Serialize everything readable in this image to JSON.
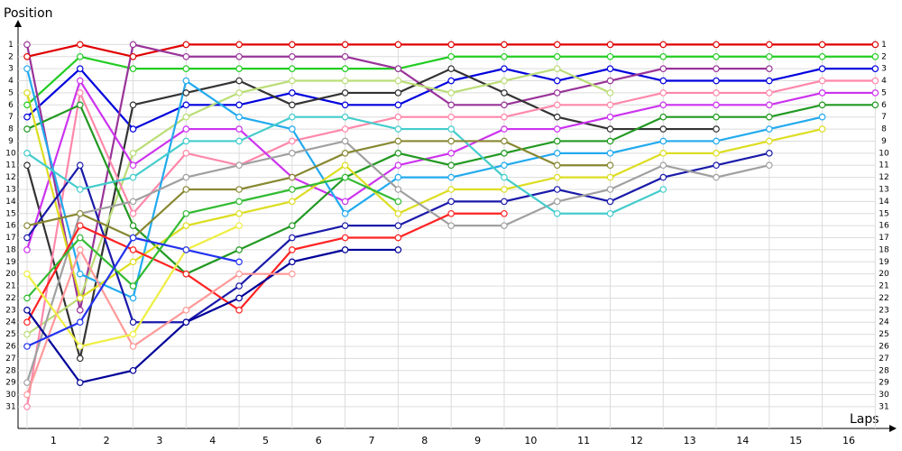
{
  "chart_data": {
    "type": "line",
    "y_label": "Position",
    "x_label": "Laps",
    "x": [
      0,
      1,
      2,
      3,
      4,
      5,
      6,
      7,
      8,
      9,
      10,
      11,
      12,
      13,
      14,
      15,
      16
    ],
    "xlim": [
      0,
      16.3
    ],
    "xticks": [
      {
        "value": 0.5,
        "label": "1"
      },
      {
        "value": 1.5,
        "label": "2"
      },
      {
        "value": 2.5,
        "label": "3"
      },
      {
        "value": 3.5,
        "label": "4"
      },
      {
        "value": 4.5,
        "label": "5"
      },
      {
        "value": 5.5,
        "label": "6"
      },
      {
        "value": 6.5,
        "label": "7"
      },
      {
        "value": 7.5,
        "label": "8"
      },
      {
        "value": 8.5,
        "label": "9"
      },
      {
        "value": 9.5,
        "label": "10"
      },
      {
        "value": 10.5,
        "label": "11"
      },
      {
        "value": 11.5,
        "label": "12"
      },
      {
        "value": 12.5,
        "label": "13"
      },
      {
        "value": 13.5,
        "label": "14"
      },
      {
        "value": 14.5,
        "label": "15"
      },
      {
        "value": 15.5,
        "label": "16"
      }
    ],
    "ylim": [
      0,
      32.8
    ],
    "yticks": [
      1,
      2,
      3,
      4,
      5,
      6,
      7,
      8,
      9,
      10,
      11,
      12,
      13,
      14,
      15,
      16,
      17,
      18,
      19,
      20,
      21,
      22,
      23,
      24,
      25,
      26,
      27,
      28,
      29,
      30,
      31
    ],
    "inverted_y": true,
    "grid": true,
    "series": [
      {
        "color": "#e00000",
        "values": [
          2,
          1,
          2,
          1,
          1,
          1,
          1,
          1,
          1,
          1,
          1,
          1,
          1,
          1,
          1,
          1,
          1
        ]
      },
      {
        "color": "#22cc22",
        "values": [
          6,
          2,
          3,
          3,
          3,
          3,
          3,
          3,
          2,
          2,
          2,
          2,
          2,
          2,
          2,
          2,
          2
        ]
      },
      {
        "color": "#0000dd",
        "values": [
          7,
          3,
          8,
          6,
          6,
          5,
          6,
          6,
          4,
          3,
          4,
          3,
          4,
          4,
          4,
          3,
          3
        ]
      },
      {
        "color": "#993399",
        "values": [
          1,
          23,
          1,
          2,
          2,
          2,
          2,
          3,
          6,
          6,
          5,
          4,
          3,
          3,
          3,
          null,
          null
        ]
      },
      {
        "color": "#333333",
        "values": [
          11,
          27,
          6,
          5,
          4,
          6,
          5,
          5,
          3,
          5,
          7,
          8,
          8,
          8,
          null,
          null,
          null
        ]
      },
      {
        "color": "#bbdd77",
        "values": [
          25,
          22,
          10,
          7,
          5,
          4,
          4,
          4,
          5,
          4,
          3,
          5,
          null,
          null,
          null,
          null,
          null
        ]
      },
      {
        "color": "#ff88aa",
        "values": [
          31,
          5,
          15,
          10,
          11,
          9,
          8,
          7,
          7,
          7,
          6,
          6,
          5,
          5,
          5,
          4,
          4
        ]
      },
      {
        "color": "#cc33ee",
        "values": [
          18,
          4,
          11,
          8,
          8,
          12,
          14,
          11,
          10,
          8,
          8,
          7,
          6,
          6,
          6,
          5,
          5
        ]
      },
      {
        "color": "#229922",
        "values": [
          8,
          6,
          16,
          20,
          18,
          16,
          12,
          10,
          11,
          10,
          9,
          9,
          7,
          7,
          7,
          6,
          6
        ]
      },
      {
        "color": "#22aaee",
        "values": [
          3,
          20,
          22,
          4,
          7,
          8,
          15,
          12,
          12,
          11,
          10,
          10,
          9,
          9,
          8,
          7,
          null
        ]
      },
      {
        "color": "#dddd22",
        "values": [
          5,
          22,
          19,
          16,
          15,
          14,
          11,
          15,
          13,
          13,
          12,
          12,
          10,
          10,
          9,
          8,
          null
        ]
      },
      {
        "color": "#1a1aaa",
        "values": [
          17,
          11,
          24,
          24,
          21,
          17,
          16,
          16,
          14,
          14,
          13,
          14,
          12,
          11,
          10,
          null,
          null
        ]
      },
      {
        "color": "#a0a0a0",
        "values": [
          29,
          15,
          14,
          12,
          11,
          10,
          9,
          13,
          16,
          16,
          14,
          13,
          11,
          12,
          11,
          null,
          null
        ]
      },
      {
        "color": "#44cccc",
        "values": [
          10,
          13,
          12,
          9,
          9,
          7,
          7,
          8,
          8,
          12,
          15,
          15,
          13,
          null,
          null,
          null,
          null
        ]
      },
      {
        "color": "#888833",
        "values": [
          16,
          15,
          17,
          13,
          13,
          12,
          10,
          9,
          9,
          9,
          11,
          11,
          null,
          null,
          null,
          null,
          null
        ]
      },
      {
        "color": "#ff2222",
        "values": [
          24,
          16,
          18,
          20,
          23,
          18,
          17,
          17,
          15,
          15,
          null,
          null,
          null,
          null,
          null,
          null,
          null
        ]
      },
      {
        "color": "#000099",
        "values": [
          23,
          29,
          28,
          24,
          22,
          19,
          18,
          18,
          null,
          null,
          null,
          null,
          null,
          null,
          null,
          null,
          null
        ]
      },
      {
        "color": "#ff9999",
        "values": [
          30,
          18,
          26,
          23,
          20,
          20,
          null,
          null,
          null,
          null,
          null,
          null,
          null,
          null,
          null,
          null,
          null
        ]
      },
      {
        "color": "#33bb33",
        "values": [
          22,
          17,
          21,
          15,
          14,
          13,
          12,
          14,
          null,
          null,
          null,
          null,
          null,
          null,
          null,
          null,
          null
        ]
      },
      {
        "color": "#eeee44",
        "values": [
          20,
          26,
          25,
          18,
          16,
          null,
          null,
          null,
          null,
          null,
          null,
          null,
          null,
          null,
          null,
          null,
          null
        ]
      },
      {
        "color": "#2233ee",
        "values": [
          26,
          24,
          17,
          18,
          19,
          null,
          null,
          null,
          null,
          null,
          null,
          null,
          null,
          null,
          null,
          null,
          null
        ]
      }
    ]
  }
}
